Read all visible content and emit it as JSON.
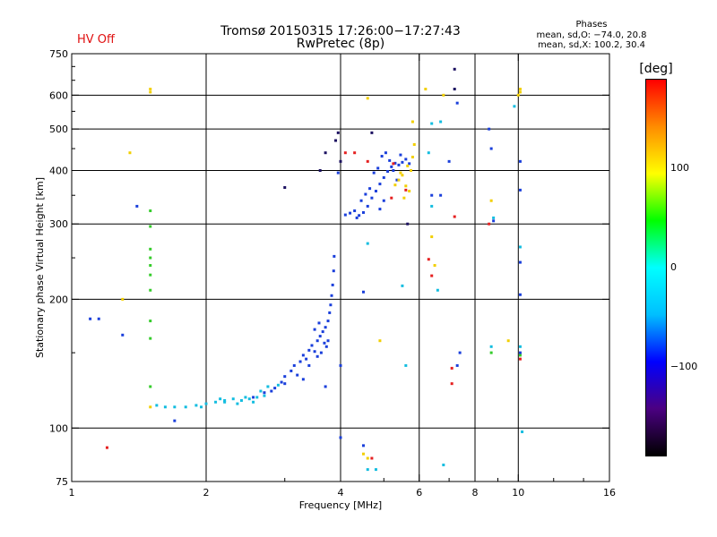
{
  "header": {
    "hv_status": "HV Off",
    "title_line1": "Tromsø 20150315 17:26:00−17:27:43",
    "title_line2": "RwPretec (8p)",
    "phases_title": "Phases",
    "phases_line1": "mean, sd,O: −74.0, 20.8",
    "phases_line2": "mean, sd,X: 100.2, 30.4"
  },
  "colorbar": {
    "title": "[deg]",
    "ticks": [
      {
        "label": "100",
        "value": 100
      },
      {
        "label": "0",
        "value": 0
      },
      {
        "label": "−100",
        "value": -100
      }
    ],
    "range": [
      -190,
      190
    ],
    "gradient": [
      "#000000",
      "#4b0082",
      "#0000ff",
      "#00bfff",
      "#00ffff",
      "#00ff00",
      "#ffff00",
      "#ff8c00",
      "#ff0000"
    ]
  },
  "colors": {
    "blue": "#1a3fdb",
    "cyan": "#13bde0",
    "yellow": "#f2cf00",
    "green": "#35cc2b",
    "red": "#e52020",
    "dark": "#1b1060",
    "hv_text": "#e01010"
  },
  "chart_data": {
    "type": "scatter",
    "title": "Tromsø 20150315 17:26:00−17:27:43",
    "xlabel": "Frequency [MHz]",
    "ylabel": "Stationary phase Virtual Height [km]",
    "xscale": "log",
    "yscale": "log",
    "xlim": [
      1,
      16
    ],
    "ylim": [
      75,
      750
    ],
    "xticks": [
      {
        "v": 1,
        "label": "1"
      },
      {
        "v": 2,
        "label": "2"
      },
      {
        "v": 4,
        "label": "4"
      },
      {
        "v": 6,
        "label": "6"
      },
      {
        "v": 8,
        "label": "8"
      },
      {
        "v": 10,
        "label": "10"
      },
      {
        "v": 16,
        "label": "16"
      }
    ],
    "yticks": [
      {
        "v": 75,
        "label": "75"
      },
      {
        "v": 100,
        "label": "100"
      },
      {
        "v": 200,
        "label": "200"
      },
      {
        "v": 300,
        "label": "300"
      },
      {
        "v": 400,
        "label": "400"
      },
      {
        "v": 500,
        "label": "500"
      },
      {
        "v": 600,
        "label": "600"
      },
      {
        "v": 750,
        "label": "750"
      }
    ],
    "xgrid": [
      2,
      4,
      6,
      8,
      10
    ],
    "ygrid": [
      100,
      200,
      300,
      400,
      500,
      600
    ],
    "series": [
      {
        "name": "O-trace",
        "color": "blue",
        "points": [
          [
            2.55,
            118
          ],
          [
            2.7,
            121
          ],
          [
            2.85,
            124
          ],
          [
            2.95,
            128
          ],
          [
            3.0,
            132
          ],
          [
            3.1,
            136
          ],
          [
            3.15,
            140
          ],
          [
            3.25,
            143
          ],
          [
            3.3,
            148
          ],
          [
            3.4,
            152
          ],
          [
            3.45,
            156
          ],
          [
            3.5,
            151
          ],
          [
            3.55,
            160
          ],
          [
            3.6,
            164
          ],
          [
            3.65,
            168
          ],
          [
            3.7,
            172
          ],
          [
            3.75,
            178
          ],
          [
            3.78,
            186
          ],
          [
            3.8,
            194
          ],
          [
            3.82,
            204
          ],
          [
            3.84,
            216
          ],
          [
            3.86,
            233
          ],
          [
            3.87,
            252
          ],
          [
            3.55,
            147
          ],
          [
            3.62,
            150
          ],
          [
            3.68,
            158
          ],
          [
            3.4,
            140
          ],
          [
            3.3,
            130
          ],
          [
            3.2,
            133
          ],
          [
            3.5,
            170
          ],
          [
            3.75,
            160
          ],
          [
            3.58,
            176
          ],
          [
            3.72,
            155
          ],
          [
            3.0,
            127
          ],
          [
            3.35,
            145
          ],
          [
            2.8,
            122
          ]
        ]
      },
      {
        "name": "O-trace-low",
        "color": "cyan",
        "points": [
          [
            1.55,
            113
          ],
          [
            1.62,
            112
          ],
          [
            1.7,
            112
          ],
          [
            1.8,
            112
          ],
          [
            1.9,
            113
          ],
          [
            2.0,
            114
          ],
          [
            2.1,
            115
          ],
          [
            2.2,
            116
          ],
          [
            2.3,
            117
          ],
          [
            2.4,
            116
          ],
          [
            2.5,
            117
          ],
          [
            2.6,
            118
          ],
          [
            2.7,
            119
          ],
          [
            2.2,
            115
          ],
          [
            2.45,
            118
          ],
          [
            2.15,
            117
          ],
          [
            2.35,
            114
          ],
          [
            2.55,
            115
          ],
          [
            2.65,
            122
          ],
          [
            1.95,
            112
          ],
          [
            2.9,
            126
          ],
          [
            2.75,
            125
          ]
        ]
      },
      {
        "name": "X-trace",
        "color": "blue",
        "points": [
          [
            4.1,
            315
          ],
          [
            4.2,
            318
          ],
          [
            4.3,
            322
          ],
          [
            4.4,
            314
          ],
          [
            4.5,
            319
          ],
          [
            4.6,
            330
          ],
          [
            4.7,
            345
          ],
          [
            4.8,
            358
          ],
          [
            4.9,
            372
          ],
          [
            5.0,
            385
          ],
          [
            5.1,
            398
          ],
          [
            5.2,
            408
          ],
          [
            5.3,
            416
          ],
          [
            5.4,
            412
          ],
          [
            5.5,
            418
          ],
          [
            5.6,
            425
          ],
          [
            5.7,
            415
          ],
          [
            4.55,
            352
          ],
          [
            4.65,
            363
          ],
          [
            4.75,
            395
          ],
          [
            4.85,
            405
          ],
          [
            4.95,
            432
          ],
          [
            5.05,
            440
          ],
          [
            5.15,
            422
          ],
          [
            5.25,
            400
          ],
          [
            5.45,
            435
          ],
          [
            4.45,
            340
          ],
          [
            4.35,
            310
          ],
          [
            5.35,
            380
          ],
          [
            4.9,
            325
          ]
        ]
      },
      {
        "name": "X-yellow",
        "color": "yellow",
        "points": [
          [
            5.3,
            370
          ],
          [
            5.4,
            380
          ],
          [
            5.5,
            390
          ],
          [
            5.6,
            368
          ],
          [
            5.7,
            358
          ],
          [
            5.75,
            400
          ],
          [
            5.8,
            430
          ],
          [
            5.85,
            460
          ],
          [
            5.65,
            410
          ],
          [
            5.55,
            345
          ],
          [
            5.45,
            395
          ]
        ]
      },
      {
        "name": "X-red",
        "color": "red",
        "points": [
          [
            5.25,
            415
          ],
          [
            5.6,
            360
          ],
          [
            5.2,
            345
          ],
          [
            4.6,
            420
          ]
        ]
      },
      {
        "name": "high-echoes",
        "color": "dark",
        "points": [
          [
            3.9,
            470
          ],
          [
            3.95,
            490
          ],
          [
            3.7,
            440
          ],
          [
            3.6,
            400
          ],
          [
            4.7,
            490
          ],
          [
            4.0,
            420
          ],
          [
            3.0,
            365
          ],
          [
            5.65,
            300
          ],
          [
            7.2,
            620
          ],
          [
            7.2,
            690
          ]
        ]
      },
      {
        "name": "yellow-scatter",
        "color": "yellow",
        "points": [
          [
            1.5,
            620
          ],
          [
            1.5,
            610
          ],
          [
            1.35,
            440
          ],
          [
            1.3,
            200
          ],
          [
            4.6,
            590
          ],
          [
            5.8,
            520
          ],
          [
            6.2,
            620
          ],
          [
            6.8,
            600
          ],
          [
            6.4,
            280
          ],
          [
            6.5,
            240
          ],
          [
            8.7,
            340
          ],
          [
            9.5,
            160
          ],
          [
            10.1,
            610
          ],
          [
            10.0,
            600
          ],
          [
            4.5,
            87
          ],
          [
            4.6,
            85
          ],
          [
            4.9,
            160
          ],
          [
            1.5,
            112
          ],
          [
            10.1,
            620
          ]
        ]
      },
      {
        "name": "cyan-scatter",
        "color": "cyan",
        "points": [
          [
            6.4,
            515
          ],
          [
            6.7,
            520
          ],
          [
            6.4,
            330
          ],
          [
            6.6,
            210
          ],
          [
            5.5,
            215
          ],
          [
            5.6,
            140
          ],
          [
            4.6,
            270
          ],
          [
            4.6,
            80
          ],
          [
            6.8,
            82
          ],
          [
            8.7,
            155
          ],
          [
            9.8,
            565
          ],
          [
            10.1,
            265
          ],
          [
            10.2,
            98
          ],
          [
            10.1,
            155
          ],
          [
            8.8,
            310
          ],
          [
            6.3,
            440
          ],
          [
            4.8,
            80
          ]
        ]
      },
      {
        "name": "green-scatter",
        "color": "green",
        "points": [
          [
            1.5,
            322
          ],
          [
            1.5,
            296
          ],
          [
            1.5,
            262
          ],
          [
            1.5,
            250
          ],
          [
            1.5,
            240
          ],
          [
            1.5,
            228
          ],
          [
            1.5,
            210
          ],
          [
            1.5,
            178
          ],
          [
            1.5,
            162
          ],
          [
            1.5,
            125
          ],
          [
            8.7,
            150
          ],
          [
            10.1,
            148
          ]
        ]
      },
      {
        "name": "red-scatter",
        "color": "red",
        "points": [
          [
            1.2,
            90
          ],
          [
            6.3,
            248
          ],
          [
            6.4,
            227
          ],
          [
            7.2,
            312
          ],
          [
            7.1,
            138
          ],
          [
            7.1,
            127
          ],
          [
            8.6,
            300
          ],
          [
            10.1,
            145
          ],
          [
            4.7,
            85
          ],
          [
            4.1,
            440
          ],
          [
            4.3,
            440
          ]
        ]
      },
      {
        "name": "blue-scatter",
        "color": "blue",
        "points": [
          [
            1.1,
            180
          ],
          [
            1.15,
            180
          ],
          [
            1.3,
            165
          ],
          [
            1.4,
            330
          ],
          [
            1.7,
            104
          ],
          [
            3.7,
            125
          ],
          [
            4.0,
            140
          ],
          [
            4.0,
            95
          ],
          [
            4.5,
            91
          ],
          [
            4.5,
            208
          ],
          [
            5.0,
            340
          ],
          [
            6.4,
            350
          ],
          [
            6.7,
            350
          ],
          [
            7.0,
            420
          ],
          [
            7.3,
            575
          ],
          [
            8.6,
            500
          ],
          [
            8.7,
            450
          ],
          [
            8.8,
            305
          ],
          [
            10.1,
            420
          ],
          [
            10.1,
            360
          ],
          [
            10.1,
            244
          ],
          [
            10.1,
            150
          ],
          [
            10.1,
            205
          ],
          [
            7.4,
            150
          ],
          [
            7.3,
            140
          ],
          [
            3.95,
            395
          ]
        ]
      }
    ]
  }
}
